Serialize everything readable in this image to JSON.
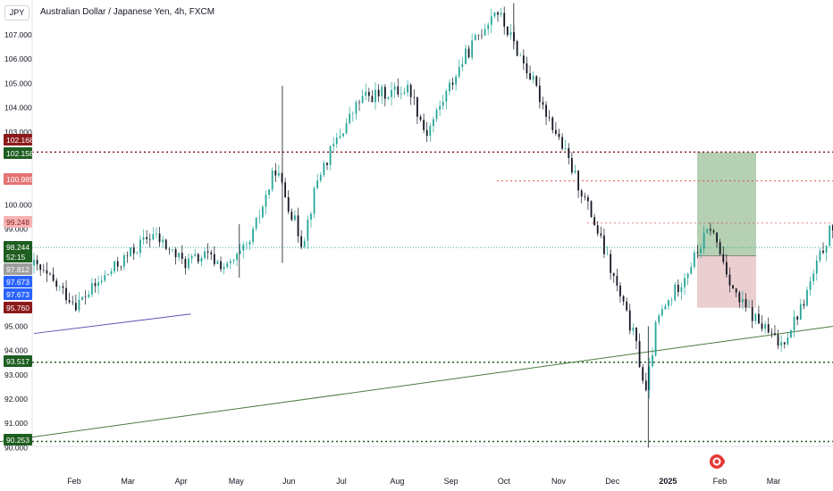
{
  "header": {
    "currency": "JPY",
    "title": "Australian Dollar / Japanese Yen, 4h, FXCM"
  },
  "colors": {
    "up": "#26a69a",
    "down": "#131722",
    "trendline": "#4a7c3f",
    "support": "#1e5e20",
    "resistance": "#8b1a1a",
    "target_zone": "#a8c8a6",
    "stop_zone": "#e8c5c8"
  },
  "chart_data": {
    "type": "candlestick",
    "title": "Australian Dollar / Japanese Yen, 4h, FXCM",
    "xlabel": "",
    "ylabel": "",
    "ylim": [
      89.9,
      108.5
    ],
    "y_ticks": [
      "107.000",
      "106.000",
      "105.000",
      "104.000",
      "103.000",
      "100.000",
      "99.000",
      "95.000",
      "94.000",
      "93.000",
      "92.000",
      "91.000",
      "90.000"
    ],
    "x_ticks": [
      "Feb",
      "Mar",
      "Apr",
      "May",
      "Jun",
      "Jul",
      "Aug",
      "Sep",
      "Oct",
      "Nov",
      "Dec",
      "2025",
      "Feb",
      "Mar"
    ],
    "price_path": [
      [
        0,
        97.5
      ],
      [
        0.8,
        95.9
      ],
      [
        1.4,
        97.2
      ],
      [
        2.2,
        98.8
      ],
      [
        2.8,
        97.6
      ],
      [
        3.2,
        97.9
      ],
      [
        3.6,
        97.4
      ],
      [
        4.0,
        98.3
      ],
      [
        4.5,
        101.5
      ],
      [
        5.0,
        98.4
      ],
      [
        5.3,
        101.2
      ],
      [
        5.7,
        102.9
      ],
      [
        6.1,
        104.4
      ],
      [
        7.0,
        104.8
      ],
      [
        7.3,
        102.9
      ],
      [
        8.0,
        106.0
      ],
      [
        8.6,
        108.1
      ],
      [
        9.2,
        105.5
      ],
      [
        9.8,
        102.6
      ],
      [
        10.4,
        99.5
      ],
      [
        11.2,
        94.4
      ],
      [
        11.4,
        92.2
      ],
      [
        11.6,
        95.2
      ],
      [
        12.2,
        97.4
      ],
      [
        12.6,
        99.1
      ],
      [
        13.1,
        96.1
      ],
      [
        13.9,
        94.2
      ],
      [
        14.3,
        95.8
      ],
      [
        14.8,
        98.8
      ],
      [
        15.5,
        101.0
      ],
      [
        16.2,
        100.2
      ],
      [
        17.1,
        101.3
      ],
      [
        17.5,
        102.3
      ],
      [
        17.8,
        101.0
      ],
      [
        18.4,
        99.0
      ],
      [
        19.0,
        97.0
      ],
      [
        19.3,
        96.0
      ],
      [
        19.7,
        97.5
      ],
      [
        20.0,
        98.2
      ],
      [
        20.3,
        97.0
      ],
      [
        20.7,
        97.8
      ],
      [
        21.1,
        97.8
      ],
      [
        21.4,
        98.7
      ],
      [
        21.8,
        97.4
      ],
      [
        22.1,
        96.4
      ],
      [
        22.5,
        97.6
      ],
      [
        22.8,
        98.1
      ]
    ],
    "annotations": {
      "trendline_points": [
        [
          0,
          90.25
        ],
        [
          24.4,
          98.0
        ]
      ],
      "small_line_points": [
        [
          0,
          94.7
        ],
        [
          1.9,
          95.5
        ]
      ],
      "support_levels": [
        93.517,
        90.253
      ],
      "resistance_levels": [
        102.168,
        100.985,
        99.248
      ],
      "long_position": {
        "entry": 97.9,
        "target": 102.168,
        "stop": 95.76
      }
    },
    "price_labels": [
      {
        "text": "102.168",
        "kind": "resistance"
      },
      {
        "text": "102.158",
        "kind": "support"
      },
      {
        "text": "100.985",
        "kind": "pink"
      },
      {
        "text": "99.248",
        "kind": "lightpink"
      },
      {
        "text": "98.244",
        "kind": "support"
      },
      {
        "text": "52:15",
        "kind": "countdown"
      },
      {
        "text": "97.812",
        "kind": "gray"
      },
      {
        "text": "97.673",
        "kind": "blue"
      },
      {
        "text": "97.673",
        "kind": "blue"
      },
      {
        "text": "95.760",
        "kind": "resistance"
      },
      {
        "text": "93.517",
        "kind": "support"
      },
      {
        "text": "90.253",
        "kind": "support"
      }
    ]
  }
}
